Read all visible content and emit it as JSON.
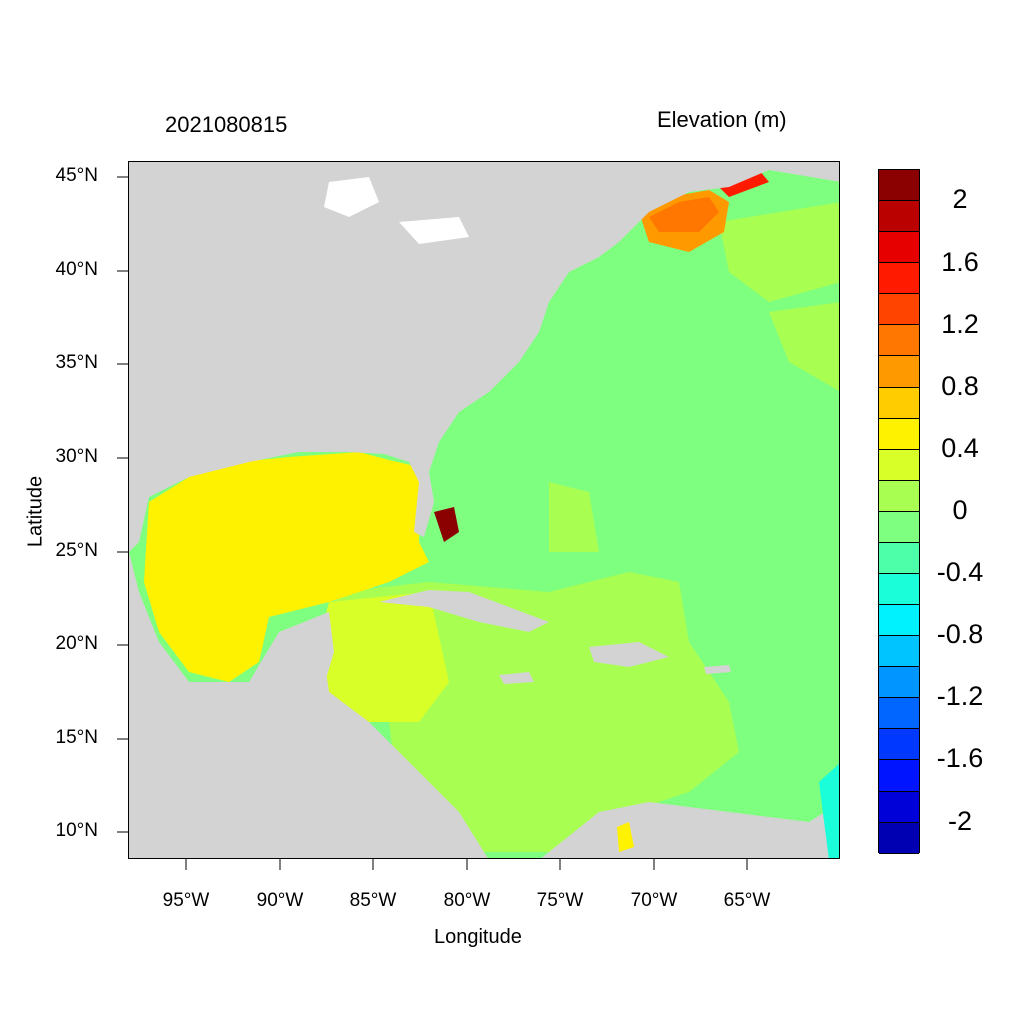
{
  "map": {
    "title_left": "2021080815",
    "title_right": "Elevation (m)",
    "x_axis_label": "Longitude",
    "y_axis_label": "Latitude",
    "x_ticks": [
      "95°W",
      "90°W",
      "85°W",
      "80°W",
      "75°W",
      "70°W",
      "65°W"
    ],
    "y_ticks": [
      "45°N",
      "40°N",
      "35°N",
      "30°N",
      "25°N",
      "20°N",
      "15°N",
      "10°N"
    ],
    "extent": {
      "lon_min": -98.1,
      "lon_max": -60.1,
      "lat_min": 8.5,
      "lat_max": 45.8
    },
    "land_color": "#d3d3d3"
  },
  "colorbar": {
    "labels": [
      "2",
      "1.6",
      "1.2",
      "0.8",
      "0.4",
      "0",
      "-0.4",
      "-0.8",
      "-1.2",
      "-1.6",
      "-2"
    ],
    "colors": [
      "#8b0000",
      "#bb0000",
      "#e60000",
      "#ff1a00",
      "#ff4400",
      "#ff7700",
      "#ff9900",
      "#ffcc00",
      "#fff200",
      "#d9ff29",
      "#a8ff52",
      "#7fff7f",
      "#4dffa8",
      "#1affd9",
      "#00f2ff",
      "#00c4ff",
      "#0095ff",
      "#0066ff",
      "#0038ff",
      "#0014ff",
      "#0000d9",
      "#0000b2"
    ]
  }
}
